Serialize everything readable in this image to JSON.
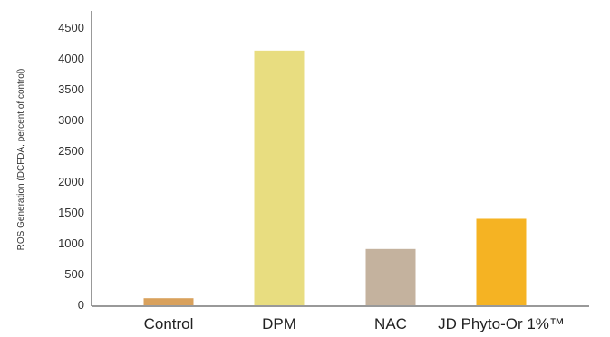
{
  "chart_data": {
    "type": "bar",
    "title": "",
    "xlabel": "",
    "ylabel": "ROS Generation (DCFDA, percent of control)",
    "categories": [
      "Control",
      "DPM",
      "NAC",
      "JD Phyto-Or 1%™"
    ],
    "values": [
      100,
      4120,
      900,
      1390
    ],
    "colors": [
      "#d9a15c",
      "#e8dd80",
      "#c4b29e",
      "#f5b323"
    ],
    "ylim": [
      0,
      4500
    ],
    "yticks": [
      0,
      500,
      1000,
      1500,
      2000,
      2500,
      3000,
      3500,
      4000,
      4500
    ],
    "grid": false,
    "legend": "none"
  }
}
